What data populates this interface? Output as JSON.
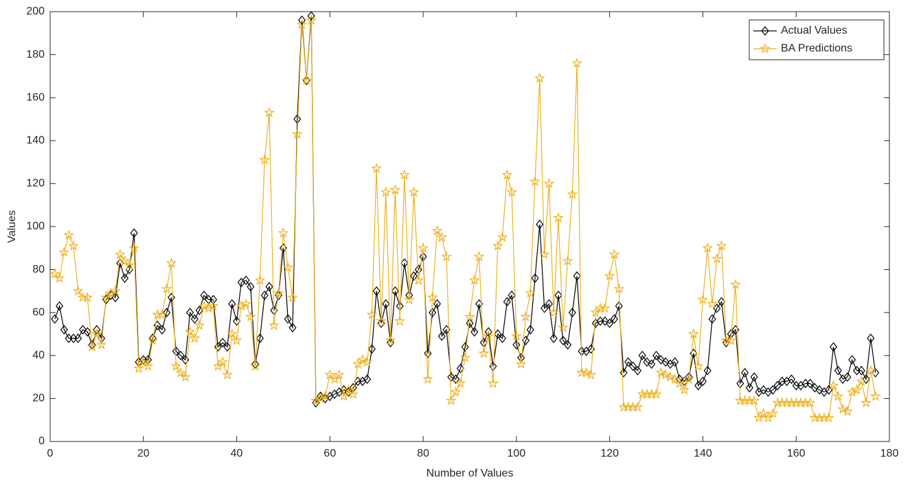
{
  "chart_data": {
    "type": "line",
    "xlabel": "Number of Values",
    "ylabel": "Values",
    "x": [
      1,
      2,
      3,
      4,
      5,
      6,
      7,
      8,
      9,
      10,
      11,
      12,
      13,
      14,
      15,
      16,
      17,
      18,
      19,
      20,
      21,
      22,
      23,
      24,
      25,
      26,
      27,
      28,
      29,
      30,
      31,
      32,
      33,
      34,
      35,
      36,
      37,
      38,
      39,
      40,
      41,
      42,
      43,
      44,
      45,
      46,
      47,
      48,
      49,
      50,
      51,
      52,
      53,
      54,
      55,
      56,
      57,
      58,
      59,
      60,
      61,
      62,
      63,
      64,
      65,
      66,
      67,
      68,
      69,
      70,
      71,
      72,
      73,
      74,
      75,
      76,
      77,
      78,
      79,
      80,
      81,
      82,
      83,
      84,
      85,
      86,
      87,
      88,
      89,
      90,
      91,
      92,
      93,
      94,
      95,
      96,
      97,
      98,
      99,
      100,
      101,
      102,
      103,
      104,
      105,
      106,
      107,
      108,
      109,
      110,
      111,
      112,
      113,
      114,
      115,
      116,
      117,
      118,
      119,
      120,
      121,
      122,
      123,
      124,
      125,
      126,
      127,
      128,
      129,
      130,
      131,
      132,
      133,
      134,
      135,
      136,
      137,
      138,
      139,
      140,
      141,
      142,
      143,
      144,
      145,
      146,
      147,
      148,
      149,
      150,
      151,
      152,
      153,
      154,
      155,
      156,
      157,
      158,
      159,
      160,
      161,
      162,
      163,
      164,
      165,
      166,
      167,
      168,
      169,
      170,
      171,
      172,
      173,
      174,
      175,
      176,
      177
    ],
    "series": [
      {
        "name": "Actual Values",
        "color": "#000000",
        "marker": "diamond",
        "values": [
          57,
          63,
          52,
          48,
          48,
          48,
          52,
          51,
          45,
          52,
          48,
          66,
          68,
          67,
          83,
          76,
          80,
          97,
          37,
          38,
          38,
          48,
          54,
          52,
          60,
          67,
          42,
          40,
          38,
          60,
          57,
          61,
          68,
          66,
          66,
          44,
          46,
          44,
          64,
          56,
          74,
          75,
          72,
          36,
          48,
          68,
          72,
          61,
          68,
          90,
          57,
          53,
          150,
          196,
          168,
          198,
          18,
          21,
          20,
          21,
          22,
          23,
          24,
          23,
          25,
          28,
          28,
          29,
          43,
          70,
          55,
          64,
          46,
          70,
          63,
          83,
          68,
          77,
          80,
          86,
          41,
          60,
          64,
          49,
          52,
          30,
          29,
          34,
          44,
          55,
          51,
          64,
          46,
          51,
          35,
          50,
          48,
          65,
          68,
          45,
          39,
          47,
          52,
          76,
          101,
          62,
          64,
          48,
          68,
          47,
          45,
          60,
          77,
          42,
          42,
          43,
          55,
          56,
          56,
          55,
          57,
          63,
          32,
          37,
          35,
          33,
          40,
          37,
          36,
          40,
          38,
          37,
          36,
          37,
          29,
          28,
          30,
          41,
          26,
          28,
          33,
          57,
          62,
          65,
          46,
          50,
          52,
          27,
          32,
          25,
          30,
          23,
          24,
          23,
          24,
          26,
          28,
          28,
          29,
          26,
          26,
          27,
          27,
          25,
          24,
          23,
          24,
          44,
          33,
          29,
          30,
          38,
          33,
          33,
          29,
          48,
          32
        ]
      },
      {
        "name": "BA Predictions",
        "color": "#EDB120",
        "marker": "star",
        "values": [
          78,
          76,
          88,
          96,
          91,
          70,
          67,
          67,
          44,
          50,
          45,
          67,
          69,
          70,
          87,
          84,
          82,
          90,
          34,
          37,
          35,
          47,
          59,
          59,
          71,
          83,
          35,
          32,
          30,
          51,
          48,
          54,
          63,
          62,
          63,
          35,
          37,
          31,
          50,
          47,
          63,
          64,
          58,
          35,
          75,
          131,
          153,
          54,
          69,
          97,
          81,
          67,
          143,
          194,
          168,
          196,
          19,
          20,
          21,
          31,
          29,
          31,
          21,
          24,
          22,
          36,
          38,
          37,
          59,
          127,
          56,
          116,
          47,
          117,
          56,
          124,
          66,
          116,
          75,
          90,
          29,
          67,
          98,
          95,
          86,
          19,
          23,
          27,
          39,
          58,
          75,
          86,
          41,
          49,
          27,
          91,
          95,
          124,
          116,
          49,
          36,
          58,
          69,
          121,
          169,
          87,
          120,
          60,
          104,
          53,
          84,
          115,
          176,
          32,
          32,
          31,
          60,
          62,
          62,
          77,
          87,
          71,
          16,
          16,
          16,
          16,
          22,
          22,
          22,
          22,
          32,
          31,
          30,
          29,
          27,
          24,
          29,
          50,
          35,
          66,
          90,
          64,
          85,
          91,
          47,
          47,
          73,
          19,
          19,
          19,
          19,
          11,
          13,
          11,
          13,
          18,
          18,
          18,
          18,
          18,
          18,
          18,
          18,
          11,
          11,
          11,
          11,
          26,
          21,
          15,
          14,
          23,
          24,
          28,
          18,
          33,
          21
        ]
      }
    ],
    "xlim": [
      0,
      180
    ],
    "xticks": [
      0,
      20,
      40,
      60,
      80,
      100,
      120,
      140,
      160,
      180
    ],
    "ylim": [
      0,
      200
    ],
    "yticks": [
      0,
      20,
      40,
      60,
      80,
      100,
      120,
      140,
      160,
      180,
      200
    ],
    "grid": false,
    "legend": "top-right"
  }
}
